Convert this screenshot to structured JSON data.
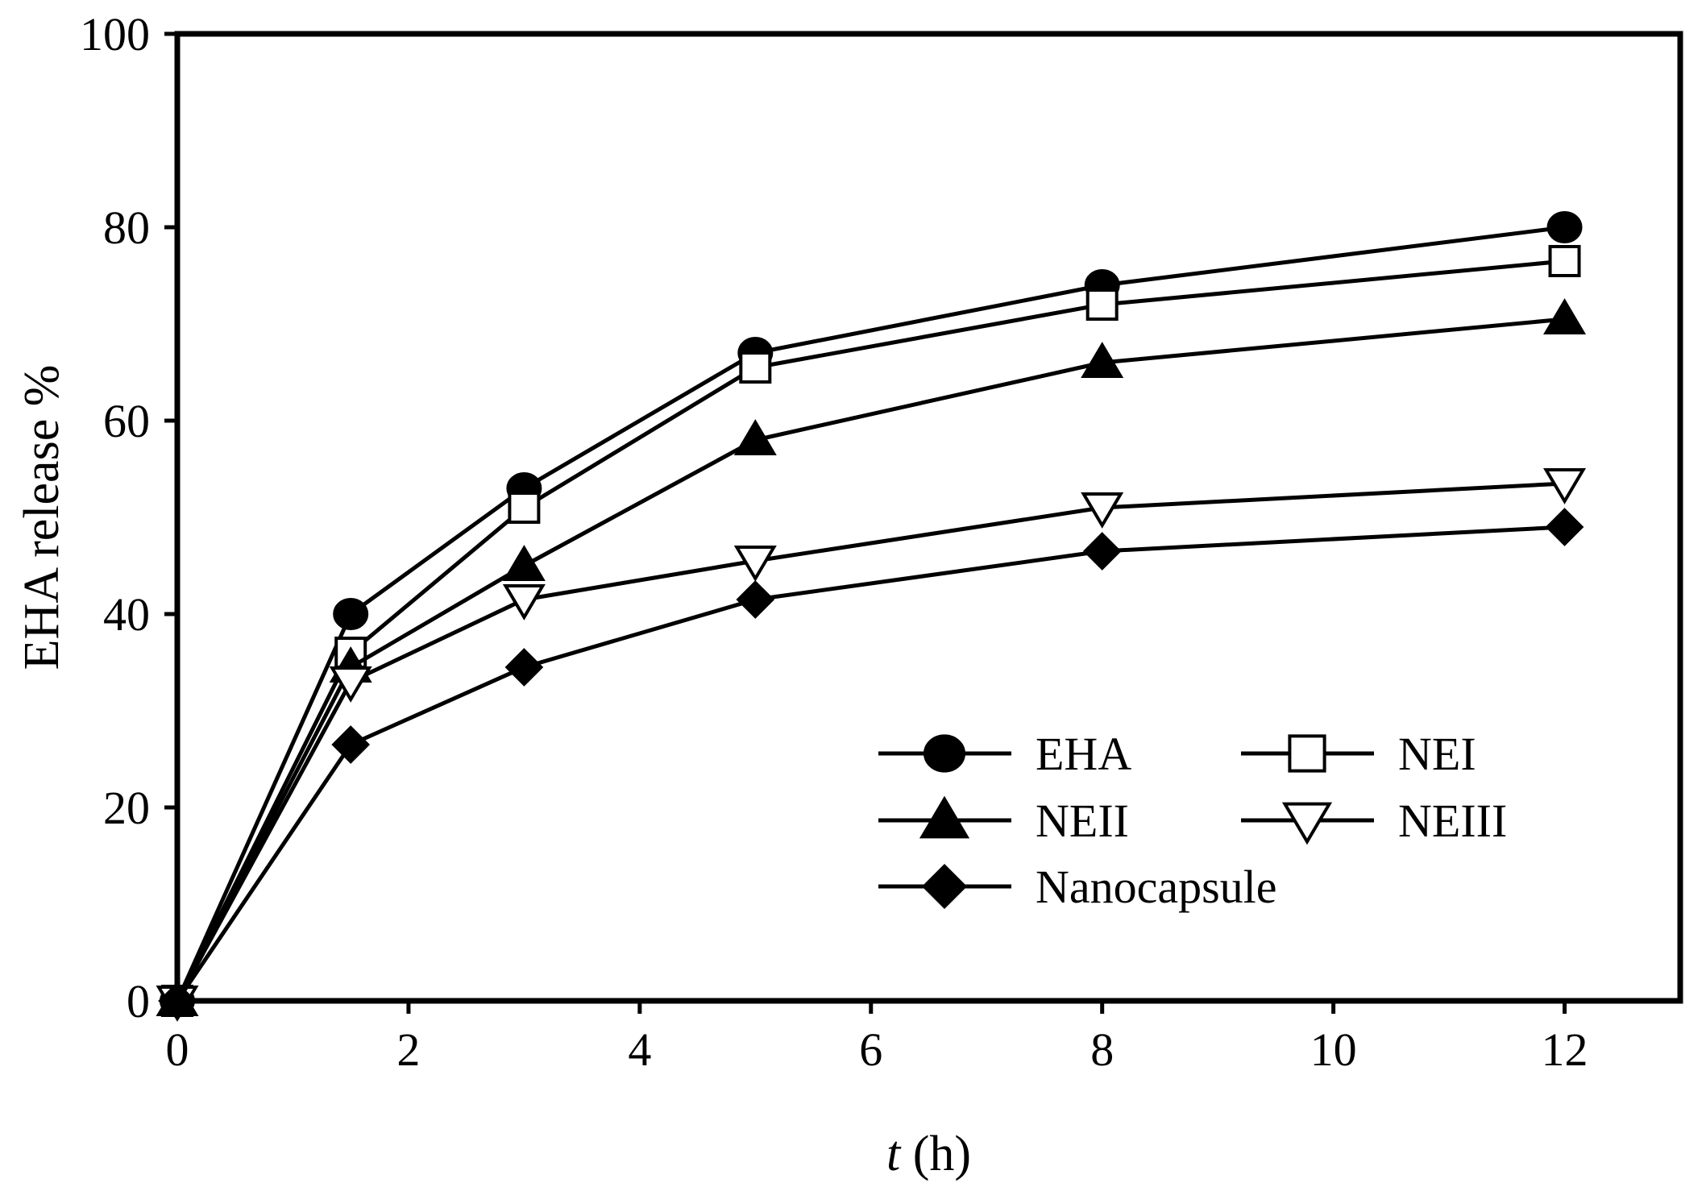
{
  "chart_data": {
    "type": "line",
    "xlabel": {
      "italic": "t",
      "rest": " (h)"
    },
    "ylabel": "EHA release %",
    "xlim": [
      0,
      13
    ],
    "ylim": [
      0,
      100
    ],
    "xticks": [
      0,
      2,
      4,
      6,
      8,
      10,
      12
    ],
    "yticks": [
      0,
      20,
      40,
      60,
      80,
      100
    ],
    "grid": false,
    "legend_position": "bottom-right",
    "x": [
      0,
      1.5,
      3,
      5,
      8,
      12
    ],
    "series": [
      {
        "name": "EHA",
        "marker": "circle-filled",
        "values": [
          0,
          40,
          53,
          67,
          74,
          80
        ]
      },
      {
        "name": "NEI",
        "marker": "square-open",
        "values": [
          0,
          36,
          51,
          65.5,
          72,
          76.5
        ]
      },
      {
        "name": "NEII",
        "marker": "triangle-up-filled",
        "values": [
          0,
          34.5,
          45,
          58,
          66,
          70.5
        ]
      },
      {
        "name": "NEIII",
        "marker": "triangle-down-open",
        "values": [
          0,
          33,
          41.5,
          45.5,
          51,
          53.5
        ]
      },
      {
        "name": "Nanocapsule",
        "marker": "diamond-filled",
        "values": [
          0,
          26.5,
          34.5,
          41.5,
          46.5,
          49
        ]
      }
    ]
  }
}
